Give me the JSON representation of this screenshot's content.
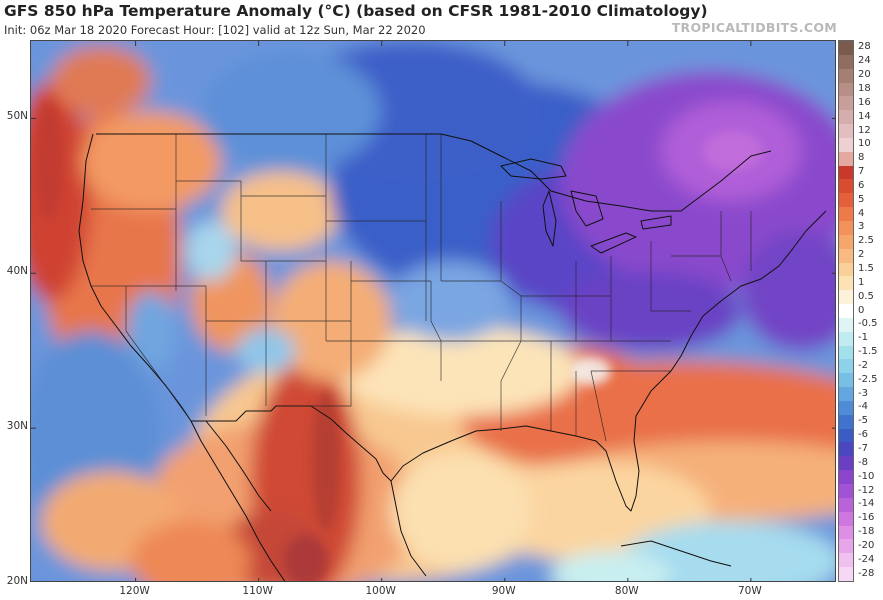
{
  "header": {
    "title": "GFS 850 hPa Temperature Anomaly (°C) (based on CFSR 1981-2010 Climatology)",
    "subtitle": "Init: 06z Mar 18 2020   Forecast Hour: [102]   valid at 12z Sun, Mar 22 2020",
    "brand": "TROPICALTIDBITS.COM"
  },
  "map": {
    "projection": "lat-lon",
    "lon_range": [
      -128.5,
      -63
    ],
    "lat_range": [
      20,
      55
    ],
    "lat_ticks": [
      {
        "value": 50,
        "label": "50N"
      },
      {
        "value": 40,
        "label": "40N"
      },
      {
        "value": 30,
        "label": "30N"
      },
      {
        "value": 20,
        "label": "20N"
      }
    ],
    "lon_ticks": [
      {
        "value": -120,
        "label": "120W"
      },
      {
        "value": -110,
        "label": "110W"
      },
      {
        "value": -100,
        "label": "100W"
      },
      {
        "value": -90,
        "label": "90W"
      },
      {
        "value": -80,
        "label": "80W"
      },
      {
        "value": -70,
        "label": "70W"
      }
    ]
  },
  "colorbar": {
    "labels": [
      "28",
      "24",
      "20",
      "18",
      "16",
      "14",
      "12",
      "10",
      "8",
      "7",
      "6",
      "5",
      "4",
      "3",
      "2.5",
      "2",
      "1.5",
      "1",
      "0.5",
      "0",
      "-0.5",
      "-1",
      "-1.5",
      "-2",
      "-2.5",
      "-3",
      "-4",
      "-5",
      "-6",
      "-7",
      "-8",
      "-10",
      "-12",
      "-14",
      "-16",
      "-18",
      "-20",
      "-24",
      "-28"
    ],
    "colors": [
      "#7a5a4c",
      "#8f6d5f",
      "#a47f72",
      "#b78f86",
      "#c79e9a",
      "#d6adad",
      "#e3bec0",
      "#ecd0d2",
      "#e4a8a0",
      "#c9382a",
      "#d94c30",
      "#e5603a",
      "#ee7a48",
      "#f29259",
      "#f5a66a",
      "#f8ba80",
      "#fbcf98",
      "#fde2b4",
      "#fef1d9",
      "#ffffff",
      "#dff4f4",
      "#c0ebf0",
      "#a2e1ec",
      "#8bd2ea",
      "#78bfe6",
      "#63a6e0",
      "#4f8cd7",
      "#3f73cd",
      "#3a5cc4",
      "#4a47c0",
      "#6a3fc4",
      "#8a45cc",
      "#a252d4",
      "#ba62da",
      "#cf76e0",
      "#de8ee5",
      "#e8a6ea",
      "#f0c0ef",
      "#f6d8f4"
    ]
  }
}
